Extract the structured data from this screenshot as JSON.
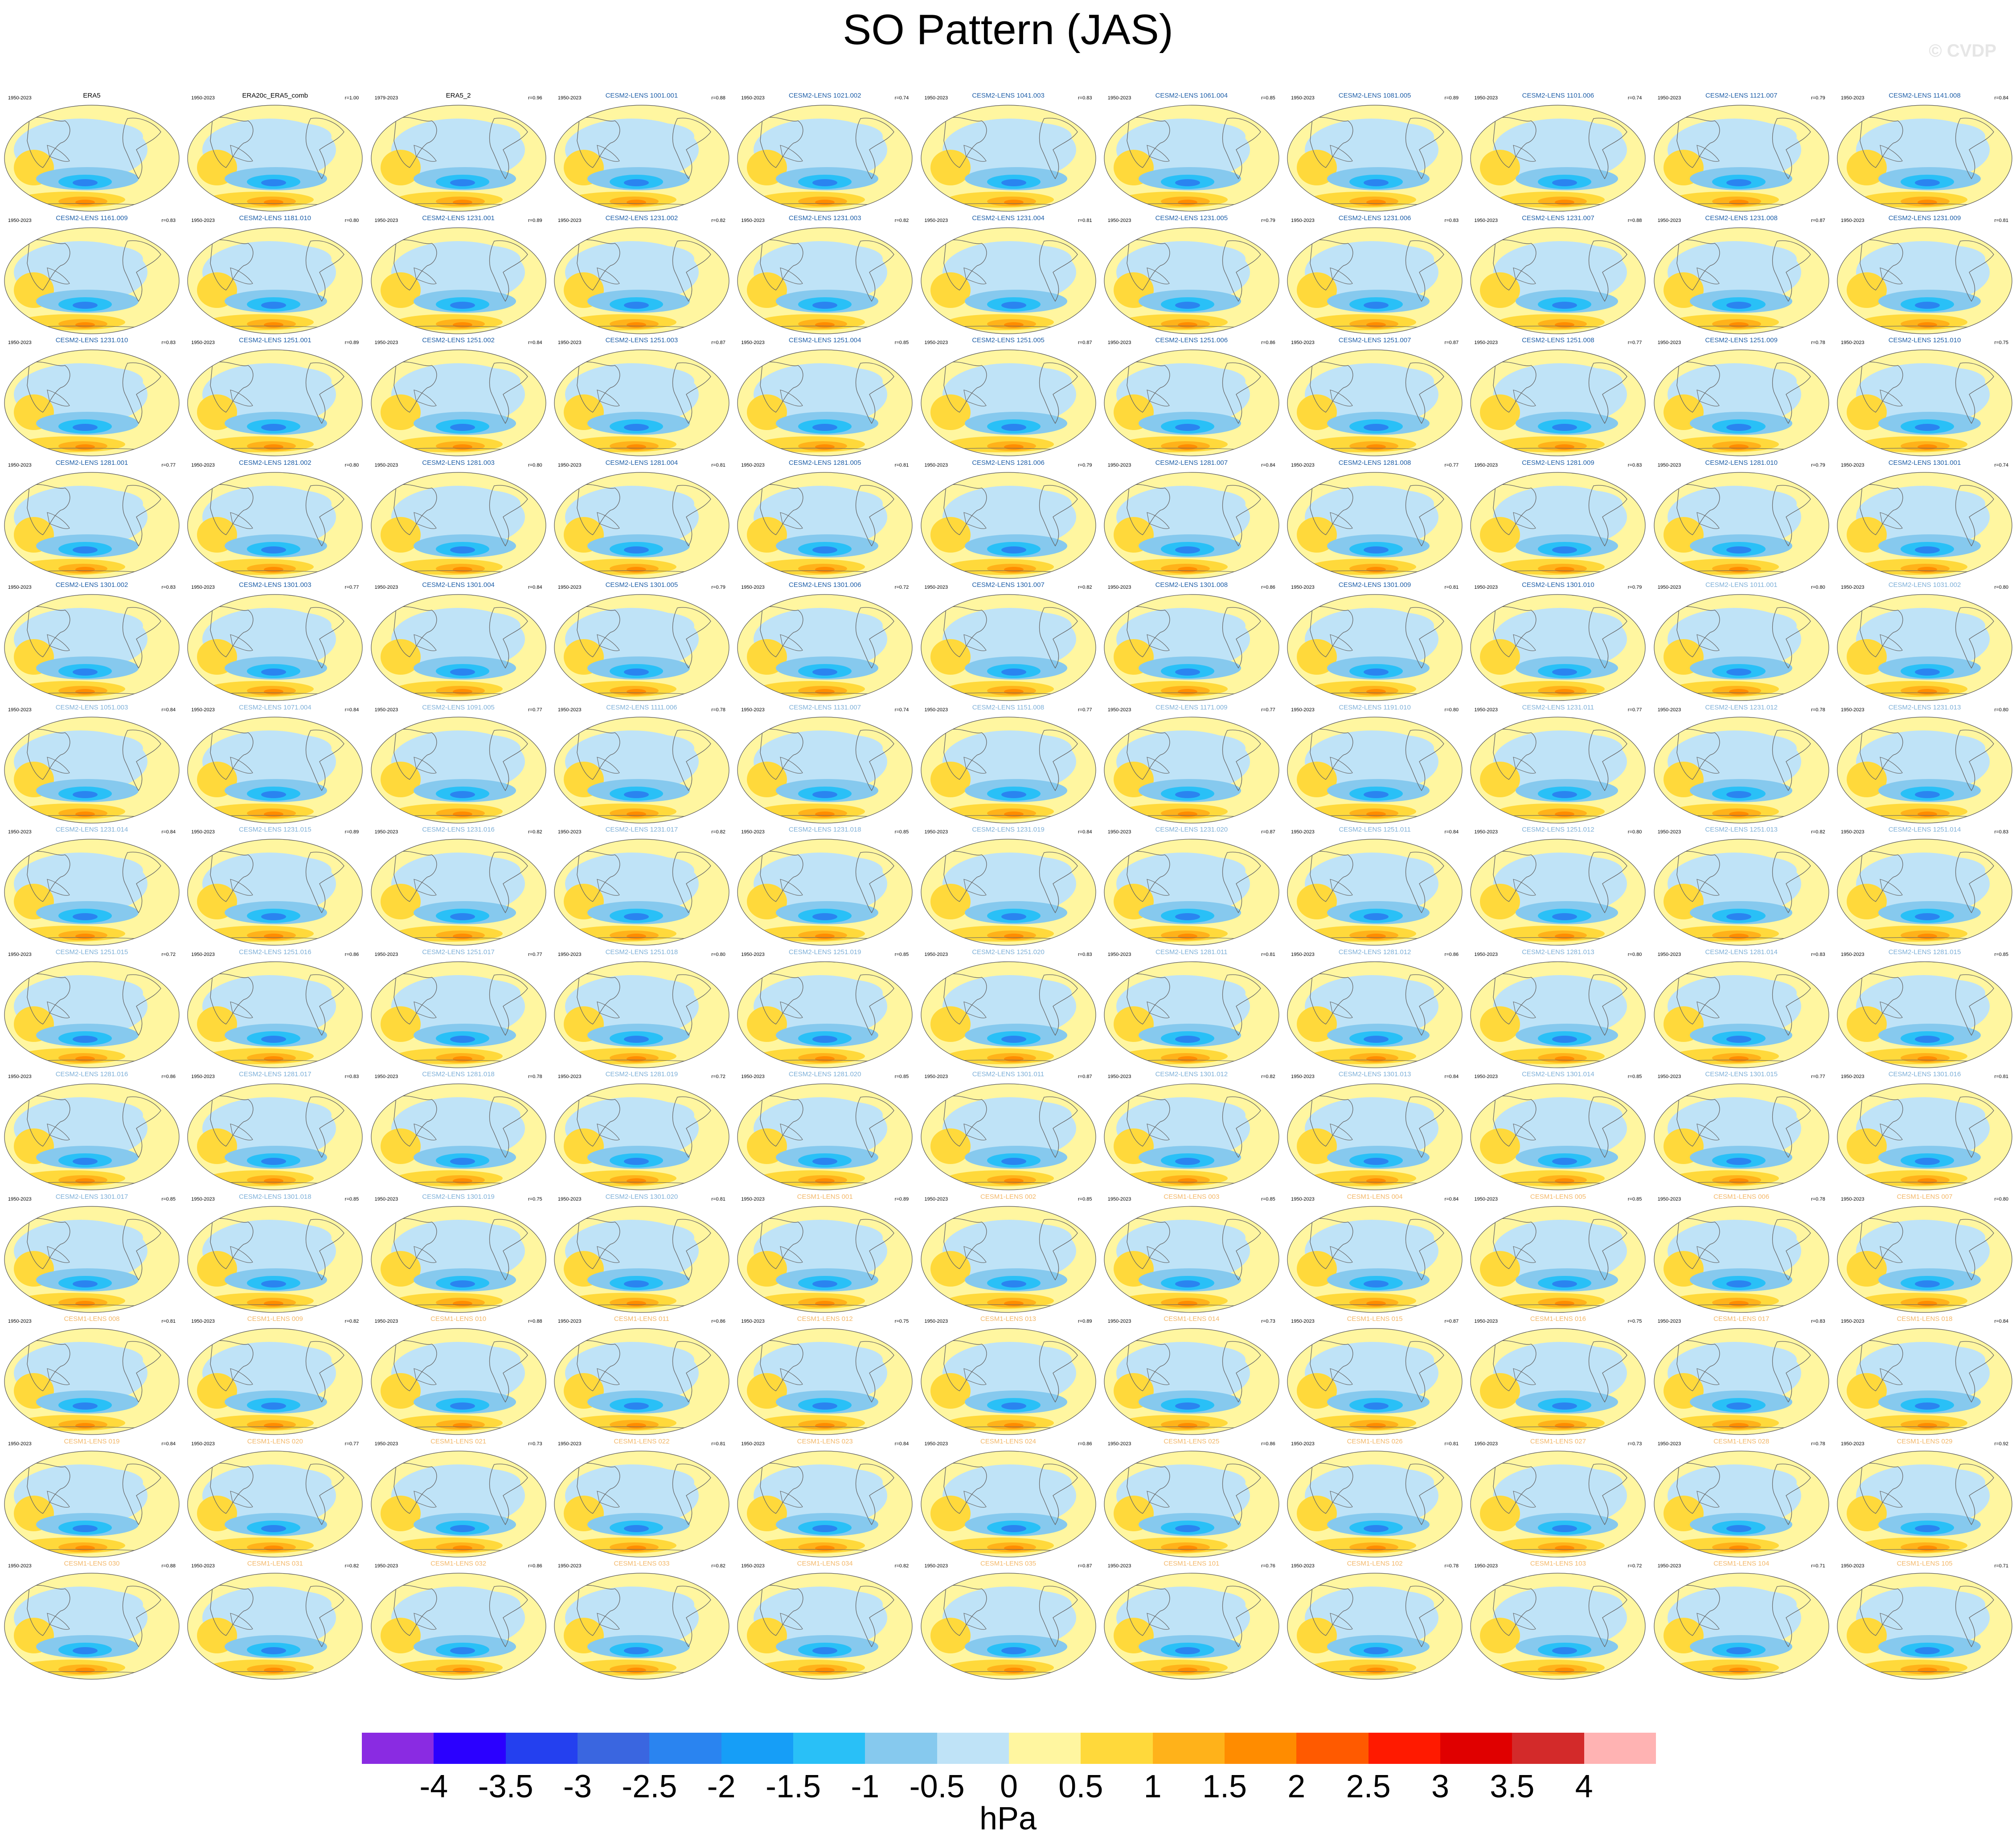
{
  "title": "SO Pattern (JAS)",
  "watermark": "© CVDP",
  "colors": {
    "observation_title": "#000000",
    "cesm2_title": "#1f5fa8",
    "cesm1_title": "#f3b86a",
    "coastline": "#666666",
    "background": "#ffffff"
  },
  "panels": [
    {
      "name": "ERA5",
      "years": "1950-2023",
      "r": "",
      "group": "obs"
    },
    {
      "name": "ERA20c_ERA5_comb",
      "years": "1950-2023",
      "r": "r=1.00",
      "group": "obs"
    },
    {
      "name": "ERA5_2",
      "years": "1979-2023",
      "r": "r=0.96",
      "group": "obs"
    },
    {
      "name": "CESM2-LENS 1001.001",
      "years": "1950-2023",
      "r": "r=0.88",
      "group": "cesm2"
    },
    {
      "name": "CESM2-LENS 1021.002",
      "years": "1950-2023",
      "r": "r=0.74",
      "group": "cesm2"
    },
    {
      "name": "CESM2-LENS 1041.003",
      "years": "1950-2023",
      "r": "r=0.83",
      "group": "cesm2"
    },
    {
      "name": "CESM2-LENS 1061.004",
      "years": "1950-2023",
      "r": "r=0.85",
      "group": "cesm2"
    },
    {
      "name": "CESM2-LENS 1081.005",
      "years": "1950-2023",
      "r": "r=0.89",
      "group": "cesm2"
    },
    {
      "name": "CESM2-LENS 1101.006",
      "years": "1950-2023",
      "r": "r=0.74",
      "group": "cesm2"
    },
    {
      "name": "CESM2-LENS 1121.007",
      "years": "1950-2023",
      "r": "r=0.79",
      "group": "cesm2"
    },
    {
      "name": "CESM2-LENS 1141.008",
      "years": "1950-2023",
      "r": "r=0.84",
      "group": "cesm2"
    },
    {
      "name": "CESM2-LENS 1161.009",
      "years": "1950-2023",
      "r": "r=0.83",
      "group": "cesm2"
    },
    {
      "name": "CESM2-LENS 1181.010",
      "years": "1950-2023",
      "r": "r=0.80",
      "group": "cesm2"
    },
    {
      "name": "CESM2-LENS 1231.001",
      "years": "1950-2023",
      "r": "r=0.89",
      "group": "cesm2"
    },
    {
      "name": "CESM2-LENS 1231.002",
      "years": "1950-2023",
      "r": "r=0.82",
      "group": "cesm2"
    },
    {
      "name": "CESM2-LENS 1231.003",
      "years": "1950-2023",
      "r": "r=0.82",
      "group": "cesm2"
    },
    {
      "name": "CESM2-LENS 1231.004",
      "years": "1950-2023",
      "r": "r=0.81",
      "group": "cesm2"
    },
    {
      "name": "CESM2-LENS 1231.005",
      "years": "1950-2023",
      "r": "r=0.79",
      "group": "cesm2"
    },
    {
      "name": "CESM2-LENS 1231.006",
      "years": "1950-2023",
      "r": "r=0.83",
      "group": "cesm2"
    },
    {
      "name": "CESM2-LENS 1231.007",
      "years": "1950-2023",
      "r": "r=0.88",
      "group": "cesm2"
    },
    {
      "name": "CESM2-LENS 1231.008",
      "years": "1950-2023",
      "r": "r=0.87",
      "group": "cesm2"
    },
    {
      "name": "CESM2-LENS 1231.009",
      "years": "1950-2023",
      "r": "r=0.81",
      "group": "cesm2"
    },
    {
      "name": "CESM2-LENS 1231.010",
      "years": "1950-2023",
      "r": "r=0.83",
      "group": "cesm2"
    },
    {
      "name": "CESM2-LENS 1251.001",
      "years": "1950-2023",
      "r": "r=0.89",
      "group": "cesm2"
    },
    {
      "name": "CESM2-LENS 1251.002",
      "years": "1950-2023",
      "r": "r=0.84",
      "group": "cesm2"
    },
    {
      "name": "CESM2-LENS 1251.003",
      "years": "1950-2023",
      "r": "r=0.87",
      "group": "cesm2"
    },
    {
      "name": "CESM2-LENS 1251.004",
      "years": "1950-2023",
      "r": "r=0.85",
      "group": "cesm2"
    },
    {
      "name": "CESM2-LENS 1251.005",
      "years": "1950-2023",
      "r": "r=0.87",
      "group": "cesm2"
    },
    {
      "name": "CESM2-LENS 1251.006",
      "years": "1950-2023",
      "r": "r=0.86",
      "group": "cesm2"
    },
    {
      "name": "CESM2-LENS 1251.007",
      "years": "1950-2023",
      "r": "r=0.87",
      "group": "cesm2"
    },
    {
      "name": "CESM2-LENS 1251.008",
      "years": "1950-2023",
      "r": "r=0.77",
      "group": "cesm2"
    },
    {
      "name": "CESM2-LENS 1251.009",
      "years": "1950-2023",
      "r": "r=0.78",
      "group": "cesm2"
    },
    {
      "name": "CESM2-LENS 1251.010",
      "years": "1950-2023",
      "r": "r=0.75",
      "group": "cesm2"
    },
    {
      "name": "CESM2-LENS 1281.001",
      "years": "1950-2023",
      "r": "r=0.77",
      "group": "cesm2"
    },
    {
      "name": "CESM2-LENS 1281.002",
      "years": "1950-2023",
      "r": "r=0.80",
      "group": "cesm2"
    },
    {
      "name": "CESM2-LENS 1281.003",
      "years": "1950-2023",
      "r": "r=0.80",
      "group": "cesm2"
    },
    {
      "name": "CESM2-LENS 1281.004",
      "years": "1950-2023",
      "r": "r=0.81",
      "group": "cesm2"
    },
    {
      "name": "CESM2-LENS 1281.005",
      "years": "1950-2023",
      "r": "r=0.81",
      "group": "cesm2"
    },
    {
      "name": "CESM2-LENS 1281.006",
      "years": "1950-2023",
      "r": "r=0.79",
      "group": "cesm2"
    },
    {
      "name": "CESM2-LENS 1281.007",
      "years": "1950-2023",
      "r": "r=0.84",
      "group": "cesm2"
    },
    {
      "name": "CESM2-LENS 1281.008",
      "years": "1950-2023",
      "r": "r=0.77",
      "group": "cesm2"
    },
    {
      "name": "CESM2-LENS 1281.009",
      "years": "1950-2023",
      "r": "r=0.83",
      "group": "cesm2"
    },
    {
      "name": "CESM2-LENS 1281.010",
      "years": "1950-2023",
      "r": "r=0.79",
      "group": "cesm2"
    },
    {
      "name": "CESM2-LENS 1301.001",
      "years": "1950-2023",
      "r": "r=0.74",
      "group": "cesm2"
    },
    {
      "name": "CESM2-LENS 1301.002",
      "years": "1950-2023",
      "r": "r=0.83",
      "group": "cesm2"
    },
    {
      "name": "CESM2-LENS 1301.003",
      "years": "1950-2023",
      "r": "r=0.77",
      "group": "cesm2"
    },
    {
      "name": "CESM2-LENS 1301.004",
      "years": "1950-2023",
      "r": "r=0.84",
      "group": "cesm2"
    },
    {
      "name": "CESM2-LENS 1301.005",
      "years": "1950-2023",
      "r": "r=0.79",
      "group": "cesm2"
    },
    {
      "name": "CESM2-LENS 1301.006",
      "years": "1950-2023",
      "r": "r=0.72",
      "group": "cesm2"
    },
    {
      "name": "CESM2-LENS 1301.007",
      "years": "1950-2023",
      "r": "r=0.82",
      "group": "cesm2"
    },
    {
      "name": "CESM2-LENS 1301.008",
      "years": "1950-2023",
      "r": "r=0.86",
      "group": "cesm2"
    },
    {
      "name": "CESM2-LENS 1301.009",
      "years": "1950-2023",
      "r": "r=0.81",
      "group": "cesm2"
    },
    {
      "name": "CESM2-LENS 1301.010",
      "years": "1950-2023",
      "r": "r=0.79",
      "group": "cesm2"
    },
    {
      "name": "CESM2-LENS 1011.001",
      "years": "1950-2023",
      "r": "r=0.80",
      "group": "cesm2b"
    },
    {
      "name": "CESM2-LENS 1031.002",
      "years": "1950-2023",
      "r": "r=0.80",
      "group": "cesm2b"
    },
    {
      "name": "CESM2-LENS 1051.003",
      "years": "1950-2023",
      "r": "r=0.84",
      "group": "cesm2b"
    },
    {
      "name": "CESM2-LENS 1071.004",
      "years": "1950-2023",
      "r": "r=0.84",
      "group": "cesm2b"
    },
    {
      "name": "CESM2-LENS 1091.005",
      "years": "1950-2023",
      "r": "r=0.77",
      "group": "cesm2b"
    },
    {
      "name": "CESM2-LENS 1111.006",
      "years": "1950-2023",
      "r": "r=0.78",
      "group": "cesm2b"
    },
    {
      "name": "CESM2-LENS 1131.007",
      "years": "1950-2023",
      "r": "r=0.74",
      "group": "cesm2b"
    },
    {
      "name": "CESM2-LENS 1151.008",
      "years": "1950-2023",
      "r": "r=0.77",
      "group": "cesm2b"
    },
    {
      "name": "CESM2-LENS 1171.009",
      "years": "1950-2023",
      "r": "r=0.77",
      "group": "cesm2b"
    },
    {
      "name": "CESM2-LENS 1191.010",
      "years": "1950-2023",
      "r": "r=0.80",
      "group": "cesm2b"
    },
    {
      "name": "CESM2-LENS 1231.011",
      "years": "1950-2023",
      "r": "r=0.77",
      "group": "cesm2b"
    },
    {
      "name": "CESM2-LENS 1231.012",
      "years": "1950-2023",
      "r": "r=0.78",
      "group": "cesm2b"
    },
    {
      "name": "CESM2-LENS 1231.013",
      "years": "1950-2023",
      "r": "r=0.80",
      "group": "cesm2b"
    },
    {
      "name": "CESM2-LENS 1231.014",
      "years": "1950-2023",
      "r": "r=0.84",
      "group": "cesm2b"
    },
    {
      "name": "CESM2-LENS 1231.015",
      "years": "1950-2023",
      "r": "r=0.89",
      "group": "cesm2b"
    },
    {
      "name": "CESM2-LENS 1231.016",
      "years": "1950-2023",
      "r": "r=0.82",
      "group": "cesm2b"
    },
    {
      "name": "CESM2-LENS 1231.017",
      "years": "1950-2023",
      "r": "r=0.82",
      "group": "cesm2b"
    },
    {
      "name": "CESM2-LENS 1231.018",
      "years": "1950-2023",
      "r": "r=0.85",
      "group": "cesm2b"
    },
    {
      "name": "CESM2-LENS 1231.019",
      "years": "1950-2023",
      "r": "r=0.84",
      "group": "cesm2b"
    },
    {
      "name": "CESM2-LENS 1231.020",
      "years": "1950-2023",
      "r": "r=0.87",
      "group": "cesm2b"
    },
    {
      "name": "CESM2-LENS 1251.011",
      "years": "1950-2023",
      "r": "r=0.84",
      "group": "cesm2b"
    },
    {
      "name": "CESM2-LENS 1251.012",
      "years": "1950-2023",
      "r": "r=0.80",
      "group": "cesm2b"
    },
    {
      "name": "CESM2-LENS 1251.013",
      "years": "1950-2023",
      "r": "r=0.82",
      "group": "cesm2b"
    },
    {
      "name": "CESM2-LENS 1251.014",
      "years": "1950-2023",
      "r": "r=0.83",
      "group": "cesm2b"
    },
    {
      "name": "CESM2-LENS 1251.015",
      "years": "1950-2023",
      "r": "r=0.72",
      "group": "cesm2b"
    },
    {
      "name": "CESM2-LENS 1251.016",
      "years": "1950-2023",
      "r": "r=0.86",
      "group": "cesm2b"
    },
    {
      "name": "CESM2-LENS 1251.017",
      "years": "1950-2023",
      "r": "r=0.77",
      "group": "cesm2b"
    },
    {
      "name": "CESM2-LENS 1251.018",
      "years": "1950-2023",
      "r": "r=0.80",
      "group": "cesm2b"
    },
    {
      "name": "CESM2-LENS 1251.019",
      "years": "1950-2023",
      "r": "r=0.85",
      "group": "cesm2b"
    },
    {
      "name": "CESM2-LENS 1251.020",
      "years": "1950-2023",
      "r": "r=0.83",
      "group": "cesm2b"
    },
    {
      "name": "CESM2-LENS 1281.011",
      "years": "1950-2023",
      "r": "r=0.81",
      "group": "cesm2b"
    },
    {
      "name": "CESM2-LENS 1281.012",
      "years": "1950-2023",
      "r": "r=0.86",
      "group": "cesm2b"
    },
    {
      "name": "CESM2-LENS 1281.013",
      "years": "1950-2023",
      "r": "r=0.80",
      "group": "cesm2b"
    },
    {
      "name": "CESM2-LENS 1281.014",
      "years": "1950-2023",
      "r": "r=0.83",
      "group": "cesm2b"
    },
    {
      "name": "CESM2-LENS 1281.015",
      "years": "1950-2023",
      "r": "r=0.85",
      "group": "cesm2b"
    },
    {
      "name": "CESM2-LENS 1281.016",
      "years": "1950-2023",
      "r": "r=0.86",
      "group": "cesm2b"
    },
    {
      "name": "CESM2-LENS 1281.017",
      "years": "1950-2023",
      "r": "r=0.83",
      "group": "cesm2b"
    },
    {
      "name": "CESM2-LENS 1281.018",
      "years": "1950-2023",
      "r": "r=0.78",
      "group": "cesm2b"
    },
    {
      "name": "CESM2-LENS 1281.019",
      "years": "1950-2023",
      "r": "r=0.72",
      "group": "cesm2b"
    },
    {
      "name": "CESM2-LENS 1281.020",
      "years": "1950-2023",
      "r": "r=0.85",
      "group": "cesm2b"
    },
    {
      "name": "CESM2-LENS 1301.011",
      "years": "1950-2023",
      "r": "r=0.87",
      "group": "cesm2b"
    },
    {
      "name": "CESM2-LENS 1301.012",
      "years": "1950-2023",
      "r": "r=0.82",
      "group": "cesm2b"
    },
    {
      "name": "CESM2-LENS 1301.013",
      "years": "1950-2023",
      "r": "r=0.84",
      "group": "cesm2b"
    },
    {
      "name": "CESM2-LENS 1301.014",
      "years": "1950-2023",
      "r": "r=0.85",
      "group": "cesm2b"
    },
    {
      "name": "CESM2-LENS 1301.015",
      "years": "1950-2023",
      "r": "r=0.77",
      "group": "cesm2b"
    },
    {
      "name": "CESM2-LENS 1301.016",
      "years": "1950-2023",
      "r": "r=0.81",
      "group": "cesm2b"
    },
    {
      "name": "CESM2-LENS 1301.017",
      "years": "1950-2023",
      "r": "r=0.85",
      "group": "cesm2b"
    },
    {
      "name": "CESM2-LENS 1301.018",
      "years": "1950-2023",
      "r": "r=0.85",
      "group": "cesm2b"
    },
    {
      "name": "CESM2-LENS 1301.019",
      "years": "1950-2023",
      "r": "r=0.75",
      "group": "cesm2b"
    },
    {
      "name": "CESM2-LENS 1301.020",
      "years": "1950-2023",
      "r": "r=0.81",
      "group": "cesm2b"
    },
    {
      "name": "CESM1-LENS 001",
      "years": "1950-2023",
      "r": "r=0.89",
      "group": "cesm1"
    },
    {
      "name": "CESM1-LENS 002",
      "years": "1950-2023",
      "r": "r=0.85",
      "group": "cesm1"
    },
    {
      "name": "CESM1-LENS 003",
      "years": "1950-2023",
      "r": "r=0.85",
      "group": "cesm1"
    },
    {
      "name": "CESM1-LENS 004",
      "years": "1950-2023",
      "r": "r=0.84",
      "group": "cesm1"
    },
    {
      "name": "CESM1-LENS 005",
      "years": "1950-2023",
      "r": "r=0.85",
      "group": "cesm1"
    },
    {
      "name": "CESM1-LENS 006",
      "years": "1950-2023",
      "r": "r=0.78",
      "group": "cesm1"
    },
    {
      "name": "CESM1-LENS 007",
      "years": "1950-2023",
      "r": "r=0.80",
      "group": "cesm1"
    },
    {
      "name": "CESM1-LENS 008",
      "years": "1950-2023",
      "r": "r=0.81",
      "group": "cesm1"
    },
    {
      "name": "CESM1-LENS 009",
      "years": "1950-2023",
      "r": "r=0.82",
      "group": "cesm1"
    },
    {
      "name": "CESM1-LENS 010",
      "years": "1950-2023",
      "r": "r=0.88",
      "group": "cesm1"
    },
    {
      "name": "CESM1-LENS 011",
      "years": "1950-2023",
      "r": "r=0.86",
      "group": "cesm1"
    },
    {
      "name": "CESM1-LENS 012",
      "years": "1950-2023",
      "r": "r=0.75",
      "group": "cesm1"
    },
    {
      "name": "CESM1-LENS 013",
      "years": "1950-2023",
      "r": "r=0.89",
      "group": "cesm1"
    },
    {
      "name": "CESM1-LENS 014",
      "years": "1950-2023",
      "r": "r=0.73",
      "group": "cesm1"
    },
    {
      "name": "CESM1-LENS 015",
      "years": "1950-2023",
      "r": "r=0.87",
      "group": "cesm1"
    },
    {
      "name": "CESM1-LENS 016",
      "years": "1950-2023",
      "r": "r=0.75",
      "group": "cesm1"
    },
    {
      "name": "CESM1-LENS 017",
      "years": "1950-2023",
      "r": "r=0.83",
      "group": "cesm1"
    },
    {
      "name": "CESM1-LENS 018",
      "years": "1950-2023",
      "r": "r=0.84",
      "group": "cesm1"
    },
    {
      "name": "CESM1-LENS 019",
      "years": "1950-2023",
      "r": "r=0.84",
      "group": "cesm1"
    },
    {
      "name": "CESM1-LENS 020",
      "years": "1950-2023",
      "r": "r=0.77",
      "group": "cesm1"
    },
    {
      "name": "CESM1-LENS 021",
      "years": "1950-2023",
      "r": "r=0.73",
      "group": "cesm1"
    },
    {
      "name": "CESM1-LENS 022",
      "years": "1950-2023",
      "r": "r=0.81",
      "group": "cesm1"
    },
    {
      "name": "CESM1-LENS 023",
      "years": "1950-2023",
      "r": "r=0.84",
      "group": "cesm1"
    },
    {
      "name": "CESM1-LENS 024",
      "years": "1950-2023",
      "r": "r=0.86",
      "group": "cesm1"
    },
    {
      "name": "CESM1-LENS 025",
      "years": "1950-2023",
      "r": "r=0.86",
      "group": "cesm1"
    },
    {
      "name": "CESM1-LENS 026",
      "years": "1950-2023",
      "r": "r=0.81",
      "group": "cesm1"
    },
    {
      "name": "CESM1-LENS 027",
      "years": "1950-2023",
      "r": "r=0.73",
      "group": "cesm1"
    },
    {
      "name": "CESM1-LENS 028",
      "years": "1950-2023",
      "r": "r=0.78",
      "group": "cesm1"
    },
    {
      "name": "CESM1-LENS 029",
      "years": "1950-2023",
      "r": "r=0.92",
      "group": "cesm1"
    },
    {
      "name": "CESM1-LENS 030",
      "years": "1950-2023",
      "r": "r=0.88",
      "group": "cesm1"
    },
    {
      "name": "CESM1-LENS 031",
      "years": "1950-2023",
      "r": "r=0.82",
      "group": "cesm1"
    },
    {
      "name": "CESM1-LENS 032",
      "years": "1950-2023",
      "r": "r=0.86",
      "group": "cesm1"
    },
    {
      "name": "CESM1-LENS 033",
      "years": "1950-2023",
      "r": "r=0.82",
      "group": "cesm1"
    },
    {
      "name": "CESM1-LENS 034",
      "years": "1950-2023",
      "r": "r=0.82",
      "group": "cesm1"
    },
    {
      "name": "CESM1-LENS 035",
      "years": "1950-2023",
      "r": "r=0.87",
      "group": "cesm1"
    },
    {
      "name": "CESM1-LENS 101",
      "years": "1950-2023",
      "r": "r=0.76",
      "group": "cesm1"
    },
    {
      "name": "CESM1-LENS 102",
      "years": "1950-2023",
      "r": "r=0.78",
      "group": "cesm1"
    },
    {
      "name": "CESM1-LENS 103",
      "years": "1950-2023",
      "r": "r=0.72",
      "group": "cesm1"
    },
    {
      "name": "CESM1-LENS 104",
      "years": "1950-2023",
      "r": "r=0.71",
      "group": "cesm1"
    },
    {
      "name": "CESM1-LENS 105",
      "years": "1950-2023",
      "r": "r=0.71",
      "group": "cesm1"
    }
  ],
  "colorbar": {
    "unit": "hPa",
    "labels": [
      "-4",
      "-3.5",
      "-3",
      "-2.5",
      "-2",
      "-1.5",
      "-1",
      "-0.5",
      "0",
      "0.5",
      "1",
      "1.5",
      "2",
      "2.5",
      "3",
      "3.5",
      "4"
    ],
    "colors": [
      "#8a2be2",
      "#2b00ff",
      "#2440ef",
      "#3a66e0",
      "#2a84f0",
      "#169ef7",
      "#29c0f7",
      "#86c9ee",
      "#bfe3f7",
      "#fff6a0",
      "#ffd93b",
      "#ffb21a",
      "#ff8c00",
      "#ff5a00",
      "#ff1a00",
      "#e00000",
      "#d32a2a",
      "#ffb3b3"
    ]
  }
}
